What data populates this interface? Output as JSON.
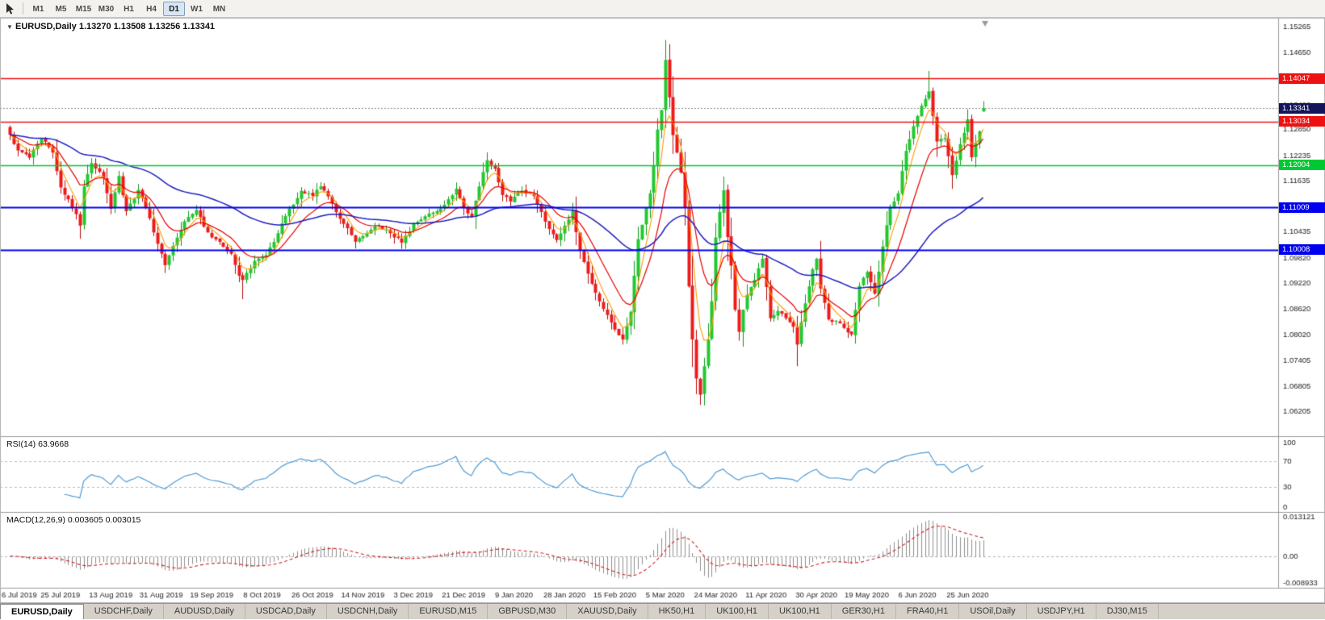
{
  "toolbar": {
    "timeframes": [
      "M1",
      "M5",
      "M15",
      "M30",
      "H1",
      "H4",
      "D1",
      "W1",
      "MN"
    ],
    "active_timeframe": "D1"
  },
  "chart_header": {
    "text": "EURUSD,Daily 1.13270 1.13508 1.13256 1.13341"
  },
  "rsi_panel": {
    "label": "RSI(14)",
    "value": "63.9668",
    "axis_labels": [
      "100",
      "70",
      "30",
      "0"
    ]
  },
  "macd_panel": {
    "label": "MACD(12,26,9)",
    "values": "0.003605 0.003015",
    "axis_labels": [
      "0.013121",
      "0.00",
      "-0.008933"
    ]
  },
  "tabs": [
    "EURUSD,Daily",
    "USDCHF,Daily",
    "AUDUSD,Daily",
    "USDCAD,Daily",
    "USDCNH,Daily",
    "EURUSD,M15",
    "GBPUSD,M30",
    "XAUUSD,Daily",
    "HK50,H1",
    "UK100,H1",
    "UK100,H1",
    "GER30,H1",
    "FRA40,H1",
    "USOil,Daily",
    "USDJPY,H1",
    "DJ30,M15"
  ],
  "active_tab_index": 0,
  "chart_data": {
    "type": "candlestick",
    "symbol": "EURUSD",
    "timeframe": "Daily",
    "ohlc": {
      "open": "1.13270",
      "high": "1.13508",
      "low": "1.13256",
      "close": "1.13341"
    },
    "candle_count": 252,
    "price_range": {
      "min": 1.0568,
      "max": 1.1536
    },
    "price_axis_labels": [
      "1.15265",
      "1.14650",
      "1.14035",
      "1.13420",
      "1.12850",
      "1.12235",
      "1.11635",
      "1.11020",
      "1.10435",
      "1.09820",
      "1.09220",
      "1.08620",
      "1.08020",
      "1.07405",
      "1.06805",
      "1.06205"
    ],
    "x_labels": [
      "6 Jul 2019",
      "25 Jul 2019",
      "13 Aug 2019",
      "31 Aug 2019",
      "19 Sep 2019",
      "8 Oct 2019",
      "26 Oct 2019",
      "14 Nov 2019",
      "3 Dec 2019",
      "21 Dec 2019",
      "9 Jan 2020",
      "28 Jan 2020",
      "15 Feb 2020",
      "5 Mar 2020",
      "24 Mar 2020",
      "11 Apr 2020",
      "30 Apr 2020",
      "19 May 2020",
      "6 Jun 2020",
      "25 Jun 2020"
    ],
    "x_tick_step": 13,
    "close_waypoints": [
      [
        0,
        1.1272
      ],
      [
        2,
        1.1235
      ],
      [
        5,
        1.1218
      ],
      [
        8,
        1.1262
      ],
      [
        11,
        1.123
      ],
      [
        13,
        1.1148
      ],
      [
        15,
        1.112
      ],
      [
        17,
        1.1085
      ],
      [
        18,
        1.1058
      ],
      [
        19,
        1.115
      ],
      [
        21,
        1.1205
      ],
      [
        24,
        1.117
      ],
      [
        26,
        1.1098
      ],
      [
        28,
        1.1175
      ],
      [
        30,
        1.1092
      ],
      [
        33,
        1.1142
      ],
      [
        35,
        1.11
      ],
      [
        37,
        1.1042
      ],
      [
        39,
        1.0992
      ],
      [
        40,
        1.0965
      ],
      [
        42,
        1.101
      ],
      [
        45,
        1.1068
      ],
      [
        48,
        1.1095
      ],
      [
        51,
        1.1042
      ],
      [
        54,
        1.102
      ],
      [
        57,
        1.0992
      ],
      [
        59,
        1.094
      ],
      [
        60,
        1.093
      ],
      [
        63,
        1.0975
      ],
      [
        66,
        1.0988
      ],
      [
        69,
        1.104
      ],
      [
        72,
        1.1098
      ],
      [
        75,
        1.114
      ],
      [
        78,
        1.1128
      ],
      [
        80,
        1.115
      ],
      [
        83,
        1.111
      ],
      [
        86,
        1.1062
      ],
      [
        89,
        1.102
      ],
      [
        92,
        1.104
      ],
      [
        95,
        1.1058
      ],
      [
        98,
        1.104
      ],
      [
        101,
        1.1018
      ],
      [
        104,
        1.1062
      ],
      [
        107,
        1.108
      ],
      [
        110,
        1.1092
      ],
      [
        113,
        1.112
      ],
      [
        115,
        1.1145
      ],
      [
        117,
        1.11
      ],
      [
        119,
        1.1078
      ],
      [
        121,
        1.115
      ],
      [
        123,
        1.1212
      ],
      [
        125,
        1.1192
      ],
      [
        127,
        1.113
      ],
      [
        129,
        1.1115
      ],
      [
        132,
        1.114
      ],
      [
        135,
        1.1128
      ],
      [
        137,
        1.109
      ],
      [
        139,
        1.105
      ],
      [
        141,
        1.1024
      ],
      [
        143,
        1.1058
      ],
      [
        145,
        1.1094
      ],
      [
        147,
        1.1
      ],
      [
        149,
        1.0945
      ],
      [
        151,
        1.09
      ],
      [
        153,
        1.0862
      ],
      [
        155,
        1.083
      ],
      [
        157,
        1.08
      ],
      [
        158,
        1.079
      ],
      [
        159,
        1.0822
      ],
      [
        160,
        1.0855
      ],
      [
        161,
        1.094
      ],
      [
        162,
        1.1026
      ],
      [
        163,
        1.106
      ],
      [
        164,
        1.11
      ],
      [
        165,
        1.1134
      ],
      [
        166,
        1.12
      ],
      [
        167,
        1.1284
      ],
      [
        168,
        1.133
      ],
      [
        169,
        1.1448
      ],
      [
        170,
        1.136
      ],
      [
        171,
        1.1271
      ],
      [
        172,
        1.123
      ],
      [
        173,
        1.1183
      ],
      [
        174,
        1.11
      ],
      [
        175,
        1.0915
      ],
      [
        176,
        1.079
      ],
      [
        177,
        1.0698
      ],
      [
        178,
        1.066
      ],
      [
        179,
        1.0727
      ],
      [
        180,
        1.079
      ],
      [
        181,
        1.088
      ],
      [
        182,
        1.103
      ],
      [
        183,
        1.109
      ],
      [
        184,
        1.1141
      ],
      [
        185,
        1.1031
      ],
      [
        186,
        1.0964
      ],
      [
        187,
        1.086
      ],
      [
        188,
        1.0808
      ],
      [
        189,
        1.086
      ],
      [
        190,
        1.0895
      ],
      [
        192,
        1.093
      ],
      [
        194,
        1.098
      ],
      [
        196,
        1.084
      ],
      [
        198,
        1.0857
      ],
      [
        200,
        1.084
      ],
      [
        202,
        1.082
      ],
      [
        203,
        1.0778
      ],
      [
        205,
        1.0875
      ],
      [
        207,
        1.0955
      ],
      [
        208,
        1.098
      ],
      [
        209,
        1.091
      ],
      [
        211,
        1.0837
      ],
      [
        213,
        1.0834
      ],
      [
        215,
        1.0817
      ],
      [
        217,
        1.0802
      ],
      [
        219,
        1.0916
      ],
      [
        221,
        1.0949
      ],
      [
        223,
        1.0898
      ],
      [
        225,
        1.1009
      ],
      [
        227,
        1.1102
      ],
      [
        229,
        1.1134
      ],
      [
        231,
        1.1234
      ],
      [
        233,
        1.1292
      ],
      [
        235,
        1.134
      ],
      [
        237,
        1.1374
      ],
      [
        239,
        1.1256
      ],
      [
        241,
        1.1264
      ],
      [
        243,
        1.1177
      ],
      [
        245,
        1.125
      ],
      [
        247,
        1.1308
      ],
      [
        248,
        1.1219
      ],
      [
        250,
        1.128
      ],
      [
        251,
        1.13341
      ]
    ],
    "wick_overrides": {
      "18": {
        "low": 1.1027
      },
      "60": {
        "low": 1.0885
      },
      "158": {
        "low": 1.0778
      },
      "169": {
        "high": 1.1495
      },
      "178": {
        "low": 1.0636
      },
      "203": {
        "low": 1.0727
      },
      "237": {
        "high": 1.1422
      },
      "251": {
        "high": 1.13508,
        "low": 1.13256
      }
    },
    "open_overrides": {
      "251": 1.1327
    },
    "current_price": {
      "value": 1.13341,
      "label": "1.13341",
      "color": "#14145a"
    },
    "hlines": [
      {
        "value": 1.14047,
        "label": "1.14047",
        "color": "#ee1111",
        "width": 1.4
      },
      {
        "value": 1.13034,
        "label": "1.13034",
        "color": "#ee1111",
        "width": 1.4
      },
      {
        "value": 1.12004,
        "label": "1.12004",
        "color": "#00c832",
        "width": 1.6
      },
      {
        "value": 1.11009,
        "label": "1.11009",
        "color": "#0000f0",
        "width": 2
      },
      {
        "value": 1.10008,
        "label": "1.10008",
        "color": "#0000f0",
        "width": 2
      }
    ],
    "moving_averages": [
      {
        "period": 5,
        "color": "#ff9c00",
        "width": 1.1
      },
      {
        "period": 13,
        "color": "#e80000",
        "width": 1.2
      },
      {
        "period": 55,
        "color": "#1f1fc0",
        "width": 1.5
      }
    ],
    "rsi": {
      "period": 14,
      "color": "#4f9bd5",
      "levels": [
        70,
        30
      ]
    },
    "macd": {
      "fast": 12,
      "slow": 26,
      "signal": 9,
      "hist_color": "#8f8f8f",
      "signal_color": "#d42020",
      "range": [
        -0.008933,
        0.013121
      ]
    },
    "up_color": "#21c82f",
    "up_stroke": "#0f9a1d",
    "down_color": "#ef1a1a",
    "down_stroke": "#b40f0f"
  }
}
